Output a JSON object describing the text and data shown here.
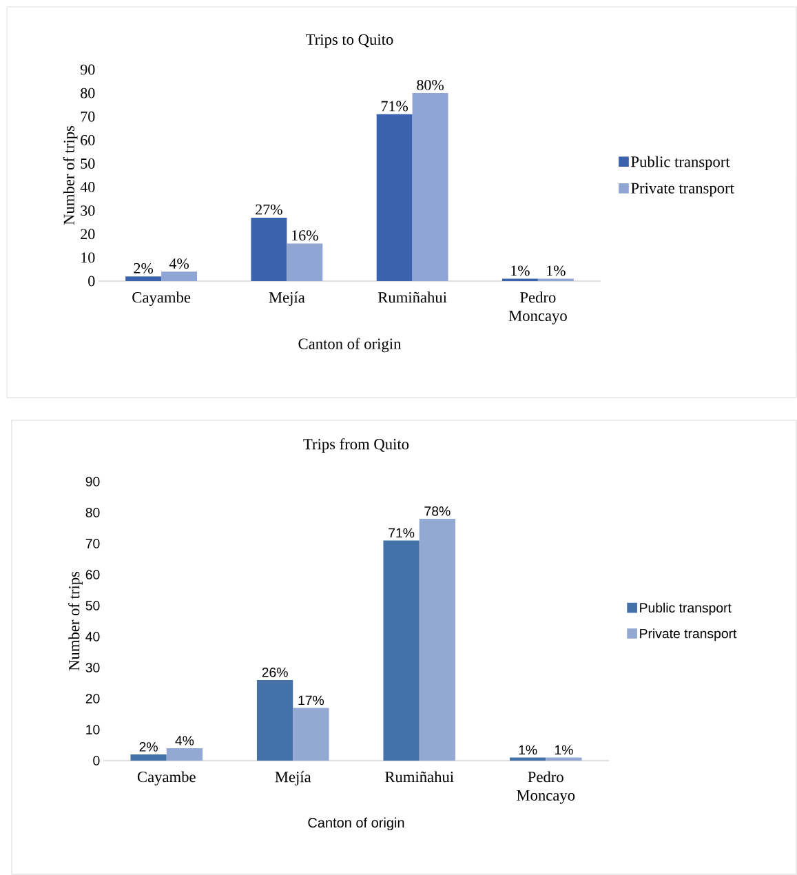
{
  "chart_data": [
    {
      "type": "bar",
      "title": "Trips to Quito",
      "xlabel": "Canton of origin",
      "ylabel": "Number of trips",
      "categories": [
        "Cayambe",
        "Mejía",
        "Rumiñahui",
        "Pedro Moncayo"
      ],
      "ylim": [
        0,
        90
      ],
      "yticks": [
        0,
        10,
        20,
        30,
        40,
        50,
        60,
        70,
        80,
        90
      ],
      "legend": "right",
      "grid": false,
      "series": [
        {
          "name": "Public transport",
          "color": "#3a62ad",
          "values": [
            2,
            27,
            71,
            1
          ],
          "value_labels": [
            "2%",
            "27%",
            "71%",
            "1%"
          ]
        },
        {
          "name": "Private transport",
          "color": "#8fa5d4",
          "values": [
            4,
            16,
            80,
            1
          ],
          "value_labels": [
            "4%",
            "16%",
            "80%",
            "1%"
          ]
        }
      ]
    },
    {
      "type": "bar",
      "title": "Trips from Quito",
      "xlabel": "Canton of origin",
      "ylabel": "Number of trips",
      "categories": [
        "Cayambe",
        "Mejía",
        "Rumiñahui",
        "Pedro Moncayo"
      ],
      "ylim": [
        0,
        90
      ],
      "yticks": [
        0,
        10,
        20,
        30,
        40,
        50,
        60,
        70,
        80,
        90
      ],
      "legend": "right",
      "grid": false,
      "series": [
        {
          "name": "Public transport",
          "color": "#4472a8",
          "values": [
            2,
            26,
            71,
            1
          ],
          "value_labels": [
            "2%",
            "26%",
            "71%",
            "1%"
          ]
        },
        {
          "name": "Private transport",
          "color": "#93a9d3",
          "values": [
            4,
            17,
            78,
            1
          ],
          "value_labels": [
            "4%",
            "17%",
            "78%",
            "1%"
          ]
        }
      ]
    }
  ]
}
